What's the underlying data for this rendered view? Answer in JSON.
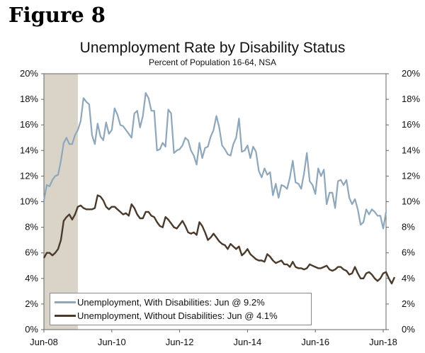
{
  "figure_label": "Figure 8",
  "chart_data": {
    "type": "line",
    "title": "Unemployment Rate by Disability Status",
    "subtitle": "Percent of Population 16-64, NSA",
    "xlabel": "",
    "ylabel": "",
    "x_start": "Jun-08",
    "x_end": "Jun-18",
    "x_tick_labels": [
      "Jun-08",
      "Jun-10",
      "Jun-12",
      "Jun-14",
      "Jun-16",
      "Jun-18"
    ],
    "ylim": [
      0,
      20
    ],
    "y_tick_labels": [
      "0%",
      "2%",
      "4%",
      "6%",
      "8%",
      "10%",
      "12%",
      "14%",
      "16%",
      "18%",
      "20%"
    ],
    "y_ticks": [
      0,
      2,
      4,
      6,
      8,
      10,
      12,
      14,
      16,
      18,
      20
    ],
    "recession_shading": {
      "start_index": 0,
      "end_index": 12,
      "color": "#d9d4c7"
    },
    "series": [
      {
        "name": "Unemployment, With Disabilities: Jun @ 9.2%",
        "color": "#8ea7bb",
        "values": [
          10.1,
          11.3,
          11.2,
          11.7,
          12.0,
          12.1,
          13.2,
          14.6,
          15.0,
          14.5,
          14.5,
          15.2,
          15.6,
          16.3,
          18.1,
          17.8,
          17.6,
          15.2,
          14.5,
          16.1,
          15.1,
          14.8,
          16.2,
          15.3,
          15.6,
          17.3,
          16.8,
          16.0,
          15.9,
          15.6,
          15.3,
          15.0,
          16.9,
          17.1,
          15.8,
          16.7,
          18.5,
          18.1,
          17.1,
          17.1,
          14.0,
          14.1,
          14.6,
          14.3,
          17.2,
          16.9,
          13.8,
          14.0,
          14.1,
          14.4,
          15.0,
          14.8,
          14.0,
          13.6,
          12.9,
          14.6,
          13.4,
          14.2,
          14.3,
          15.1,
          15.6,
          16.7,
          15.8,
          14.4,
          14.1,
          13.7,
          13.6,
          14.5,
          15.0,
          16.5,
          13.9,
          14.0,
          14.4,
          13.4,
          14.3,
          13.9,
          12.4,
          11.9,
          12.6,
          12.1,
          12.3,
          10.5,
          11.4,
          10.3,
          11.3,
          11.2,
          11.0,
          11.9,
          13.2,
          11.5,
          11.4,
          11.0,
          12.2,
          13.8,
          11.6,
          11.3,
          10.6,
          12.6,
          12.0,
          12.5,
          9.8,
          10.7,
          10.7,
          9.5,
          11.6,
          11.7,
          11.3,
          11.7,
          10.3,
          9.8,
          10.2,
          9.4,
          8.2,
          8.4,
          9.4,
          9.0,
          9.4,
          9.2,
          8.9,
          8.9,
          7.9,
          9.2
        ]
      },
      {
        "name": "Unemployment, Without Disabilities: Jun @ 4.1%",
        "color": "#4a3a2c",
        "values": [
          5.6,
          6.0,
          6.0,
          5.8,
          6.0,
          6.3,
          7.0,
          8.5,
          8.8,
          9.0,
          8.6,
          9.0,
          9.6,
          9.7,
          9.5,
          9.4,
          9.4,
          9.4,
          9.5,
          10.5,
          10.4,
          10.1,
          9.6,
          9.4,
          9.6,
          9.6,
          9.4,
          9.2,
          9.0,
          9.1,
          8.9,
          9.8,
          9.5,
          9.0,
          8.7,
          8.7,
          9.2,
          9.2,
          8.9,
          8.8,
          8.4,
          8.1,
          8.0,
          8.8,
          8.6,
          8.3,
          8.0,
          7.9,
          8.2,
          8.5,
          8.1,
          7.6,
          7.5,
          7.6,
          7.4,
          8.4,
          8.1,
          7.6,
          7.0,
          7.2,
          7.5,
          7.2,
          6.9,
          6.7,
          6.6,
          6.3,
          6.7,
          6.5,
          6.3,
          6.5,
          5.8,
          6.0,
          6.3,
          5.9,
          5.7,
          5.5,
          5.4,
          5.4,
          5.3,
          5.9,
          5.7,
          5.4,
          5.2,
          5.3,
          5.4,
          5.1,
          5.1,
          4.9,
          5.3,
          4.9,
          4.8,
          4.8,
          4.7,
          4.8,
          5.1,
          5.0,
          4.9,
          4.8,
          4.8,
          4.9,
          5.0,
          4.7,
          4.6,
          4.7,
          4.9,
          4.9,
          4.7,
          4.6,
          4.3,
          4.4,
          4.9,
          4.4,
          4.0,
          4.0,
          4.4,
          4.5,
          4.3,
          4.0,
          3.8,
          4.0,
          4.4,
          4.5,
          4.0,
          3.6,
          4.1
        ]
      }
    ]
  }
}
